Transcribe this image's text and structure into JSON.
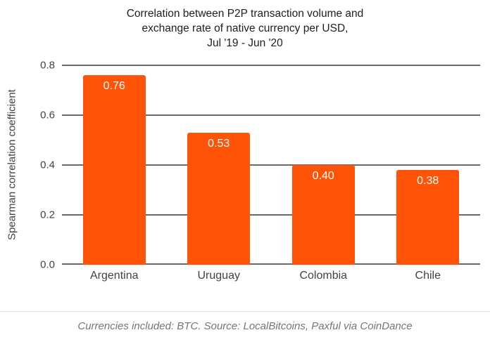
{
  "chart_data": {
    "type": "bar",
    "title": "Correlation between P2P transaction volume and\nexchange rate of native currency per USD,\nJul '19 - Jun '20",
    "categories": [
      "Argentina",
      "Uruguay",
      "Colombia",
      "Chile"
    ],
    "values": [
      0.76,
      0.53,
      0.4,
      0.38
    ],
    "value_labels": [
      "0.76",
      "0.53",
      "0.40",
      "0.38"
    ],
    "xlabel": "",
    "ylabel": "Spearman correlation coefficient",
    "ylim": [
      0,
      0.8
    ],
    "yticks": [
      0.0,
      0.2,
      0.4,
      0.6,
      0.8
    ],
    "ytick_labels": [
      "0.0",
      "0.2",
      "0.4",
      "0.6",
      "0.8"
    ],
    "grid": "horizontal",
    "legend": "none",
    "bar_color": "#FF5408",
    "value_label_color": "#FFFFFF",
    "gridline_color": "#6A6A6A"
  },
  "footer": {
    "text": "Currencies included: BTC. Source: LocalBitcoins, Paxful via CoinDance"
  }
}
